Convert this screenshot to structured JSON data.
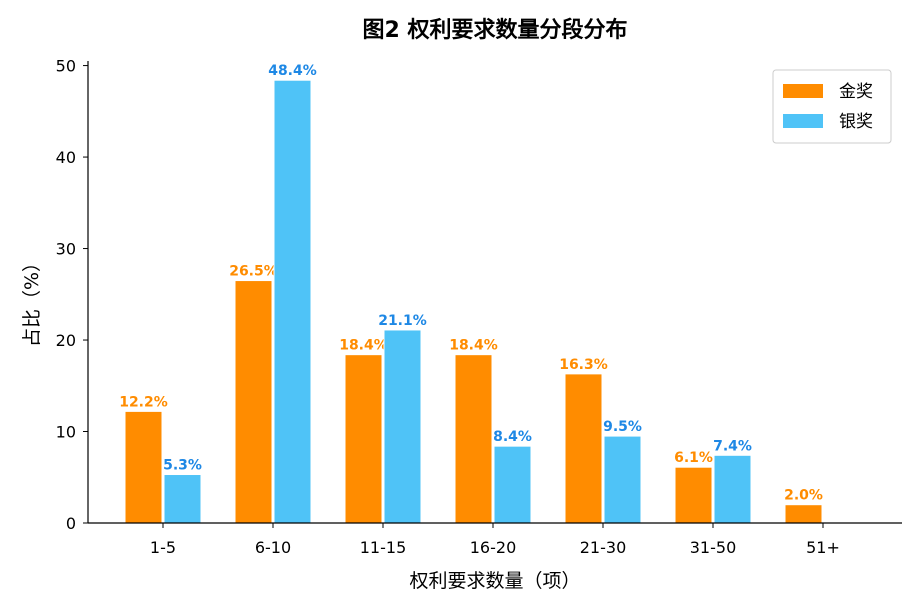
{
  "chart_data": {
    "type": "bar",
    "title": "图2  权利要求数量分段分布",
    "xlabel": "权利要求数量（项）",
    "ylabel": "占比（%）",
    "categories": [
      "1-5",
      "6-10",
      "11-15",
      "16-20",
      "21-30",
      "31-50",
      "51+"
    ],
    "series": [
      {
        "name": "金奖",
        "color": "#ff8c00",
        "values": [
          12.2,
          26.5,
          18.4,
          18.4,
          16.3,
          6.1,
          2.0
        ],
        "labels": [
          "12.2%",
          "26.5%",
          "18.4%",
          "18.4%",
          "16.3%",
          "6.1%",
          "2.0%"
        ]
      },
      {
        "name": "银奖",
        "color": "#4fc3f7",
        "label_color": "#1e88e5",
        "values": [
          5.3,
          48.4,
          21.1,
          8.4,
          9.5,
          7.4,
          null
        ],
        "labels": [
          "5.3%",
          "48.4%",
          "21.1%",
          "8.4%",
          "9.5%",
          "7.4%",
          ""
        ]
      }
    ],
    "ylim": [
      0,
      50.5
    ],
    "yticks": [
      "0",
      "10",
      "20",
      "30",
      "40",
      "50"
    ],
    "legend_position": "top-right",
    "grid": false
  }
}
